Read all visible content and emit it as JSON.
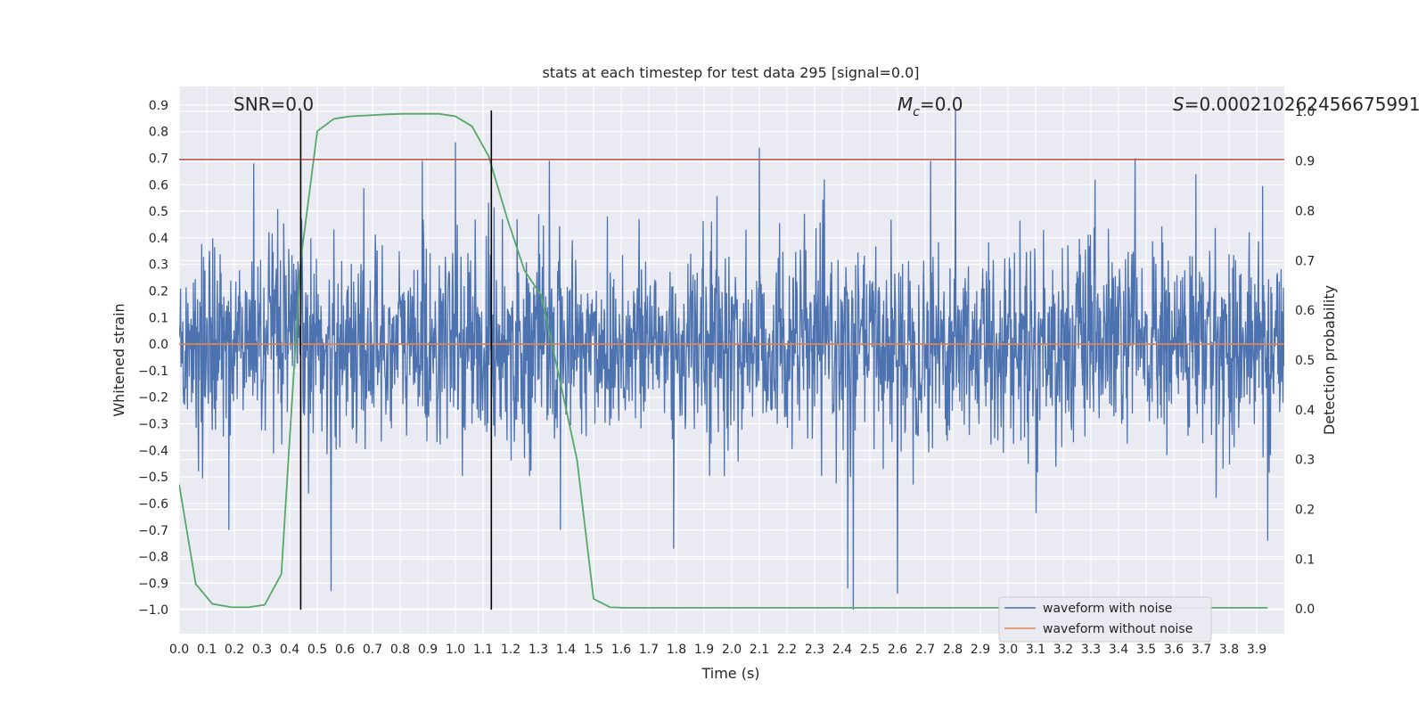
{
  "chart_data": {
    "type": "line",
    "title": "stats at each timestep for test data 295 [signal=0.0]",
    "xlabel": "Time (s)",
    "ylabel": "Whitened strain",
    "ylabel_right": "Detection probability",
    "xlim": [
      0.0,
      4.0
    ],
    "ylim": [
      -1.09,
      0.97
    ],
    "ylim_right": [
      -0.05,
      1.05
    ],
    "x_ticks": [
      "0.0",
      "0.1",
      "0.2",
      "0.3",
      "0.4",
      "0.5",
      "0.6",
      "0.7",
      "0.8",
      "0.9",
      "1.0",
      "1.1",
      "1.2",
      "1.3",
      "1.4",
      "1.5",
      "1.6",
      "1.7",
      "1.8",
      "1.9",
      "2.0",
      "2.1",
      "2.2",
      "2.3",
      "2.4",
      "2.5",
      "2.6",
      "2.7",
      "2.8",
      "2.9",
      "3.0",
      "3.1",
      "3.2",
      "3.3",
      "3.4",
      "3.5",
      "3.6",
      "3.7",
      "3.8",
      "3.9"
    ],
    "y_ticks": [
      "0.9",
      "0.8",
      "0.7",
      "0.6",
      "0.5",
      "0.4",
      "0.3",
      "0.2",
      "0.1",
      "0.0",
      "−0.1",
      "−0.2",
      "−0.3",
      "−0.4",
      "−0.5",
      "−0.6",
      "−0.7",
      "−0.8",
      "−0.9",
      "−1.0"
    ],
    "y_ticks_right": [
      "1.0",
      "0.9",
      "0.8",
      "0.7",
      "0.6",
      "0.5",
      "0.4",
      "0.3",
      "0.2",
      "0.1",
      "0.0"
    ],
    "annotations": {
      "snr": "SNR=0.0",
      "mc_symbol": "M",
      "mc_sub": "c",
      "mc_value": "=0.0",
      "s_symbol": "S",
      "s_value": "=0.000210262456675991"
    },
    "threshold_y": 0.695,
    "vlines_x": [
      0.44,
      1.13
    ],
    "vline_range": [
      -1.0,
      0.88
    ],
    "series": [
      {
        "name": "waveform with noise",
        "color": "#4c72b0",
        "kind": "noise",
        "amplitude": 0.26,
        "spikes": [
          {
            "x": 0.27,
            "y": 0.68
          },
          {
            "x": 0.88,
            "y": 0.69
          },
          {
            "x": 1.0,
            "y": 0.76
          },
          {
            "x": 1.34,
            "y": 0.69
          },
          {
            "x": 2.1,
            "y": 0.74
          },
          {
            "x": 2.72,
            "y": 0.69
          },
          {
            "x": 2.81,
            "y": 0.88
          },
          {
            "x": 3.46,
            "y": 0.7
          },
          {
            "x": 3.68,
            "y": 0.64
          },
          {
            "x": 2.42,
            "y": -0.92
          },
          {
            "x": 2.44,
            "y": -1.0
          },
          {
            "x": 2.6,
            "y": -0.94
          },
          {
            "x": 0.55,
            "y": -0.93
          },
          {
            "x": 1.79,
            "y": -0.77
          },
          {
            "x": 0.18,
            "y": -0.7
          },
          {
            "x": 3.94,
            "y": -0.74
          },
          {
            "x": 1.38,
            "y": -0.7
          }
        ]
      },
      {
        "name": "waveform without noise",
        "color": "#dd8452",
        "x": [
          0.0,
          4.0
        ],
        "y": [
          0.0,
          0.0
        ]
      },
      {
        "name": "detection probability",
        "color": "#55a868",
        "axis": "right",
        "x": [
          0.0,
          0.06,
          0.12,
          0.19,
          0.25,
          0.31,
          0.37,
          0.44,
          0.5,
          0.56,
          0.62,
          0.69,
          0.75,
          0.81,
          0.87,
          0.94,
          1.0,
          1.06,
          1.12,
          1.19,
          1.25,
          1.31,
          1.37,
          1.44,
          1.5,
          1.56,
          1.62,
          1.69,
          1.75,
          3.94
        ],
        "y": [
          0.25,
          0.05,
          0.01,
          0.003,
          0.003,
          0.008,
          0.07,
          0.7,
          0.96,
          0.985,
          0.99,
          0.992,
          0.994,
          0.995,
          0.995,
          0.995,
          0.99,
          0.97,
          0.91,
          0.78,
          0.68,
          0.63,
          0.48,
          0.3,
          0.02,
          0.003,
          0.002,
          0.002,
          0.002,
          0.002
        ]
      }
    ],
    "threshold_color": "#c44e52",
    "vline_color": "#000000",
    "legend": {
      "placement": "bottom-right",
      "entries": [
        "waveform with noise",
        "waveform without noise"
      ]
    },
    "grid": true
  }
}
